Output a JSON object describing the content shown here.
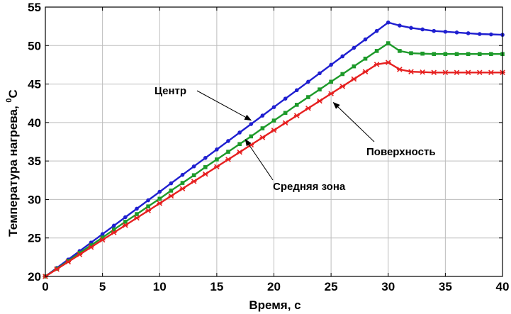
{
  "chart_data": {
    "type": "line",
    "title": "",
    "xlabel": "Время, с",
    "ylabel_main": "Температура нагрева, ",
    "ylabel_sup": "0",
    "ylabel_unit": "C",
    "xlim": [
      0,
      40
    ],
    "ylim": [
      20,
      55
    ],
    "xticks": [
      0,
      5,
      10,
      15,
      20,
      25,
      30,
      35,
      40
    ],
    "yticks": [
      20,
      25,
      30,
      35,
      40,
      45,
      50,
      55
    ],
    "grid": true,
    "x": [
      0,
      1,
      2,
      3,
      4,
      5,
      6,
      7,
      8,
      9,
      10,
      11,
      12,
      13,
      14,
      15,
      16,
      17,
      18,
      19,
      20,
      21,
      22,
      23,
      24,
      25,
      26,
      27,
      28,
      29,
      30,
      31,
      32,
      33,
      34,
      35,
      36,
      37,
      38,
      39,
      40
    ],
    "series": [
      {
        "name": "Центр",
        "color": "#1f1fd0",
        "marker": "dot",
        "values": [
          20,
          21.1,
          22.2,
          23.3,
          24.4,
          25.5,
          26.6,
          27.7,
          28.8,
          29.9,
          31.0,
          32.1,
          33.2,
          34.3,
          35.4,
          36.5,
          37.6,
          38.7,
          39.8,
          40.9,
          42.0,
          43.1,
          44.2,
          45.3,
          46.4,
          47.5,
          48.6,
          49.7,
          50.8,
          51.9,
          53.0,
          52.6,
          52.3,
          52.1,
          51.9,
          51.8,
          51.7,
          51.6,
          51.5,
          51.45,
          51.4
        ]
      },
      {
        "name": "Средняя зона",
        "color": "#1d9a2a",
        "marker": "square",
        "values": [
          20,
          21.0,
          22.0,
          23.05,
          24.05,
          25.05,
          26.1,
          27.1,
          28.1,
          29.1,
          30.1,
          31.15,
          32.15,
          33.15,
          34.2,
          35.2,
          36.2,
          37.2,
          38.2,
          39.25,
          40.25,
          41.25,
          42.3,
          43.3,
          44.3,
          45.3,
          46.3,
          47.3,
          48.3,
          49.3,
          50.3,
          49.3,
          49.0,
          48.95,
          48.9,
          48.9,
          48.9,
          48.9,
          48.9,
          48.9,
          48.9
        ]
      },
      {
        "name": "Поверхность",
        "color": "#e62020",
        "marker": "star",
        "values": [
          20,
          20.95,
          21.9,
          22.85,
          23.8,
          24.75,
          25.7,
          26.65,
          27.6,
          28.55,
          29.5,
          30.45,
          31.4,
          32.35,
          33.3,
          34.25,
          35.2,
          36.15,
          37.1,
          38.05,
          39.0,
          39.95,
          40.9,
          41.85,
          42.8,
          43.75,
          44.7,
          45.65,
          46.6,
          47.55,
          47.8,
          46.9,
          46.6,
          46.55,
          46.5,
          46.5,
          46.5,
          46.5,
          46.5,
          46.5,
          46.5
        ]
      }
    ],
    "annotations": [
      {
        "text": "Центр",
        "series": "Центр",
        "arrow_to": [
          18,
          40.3
        ]
      },
      {
        "text": "Средняя зона",
        "series": "Средняя зона",
        "arrow_to": [
          17.5,
          37.8
        ]
      },
      {
        "text": "Поверхность",
        "series": "Поверхность",
        "arrow_to": [
          25.2,
          42.6
        ]
      }
    ]
  }
}
